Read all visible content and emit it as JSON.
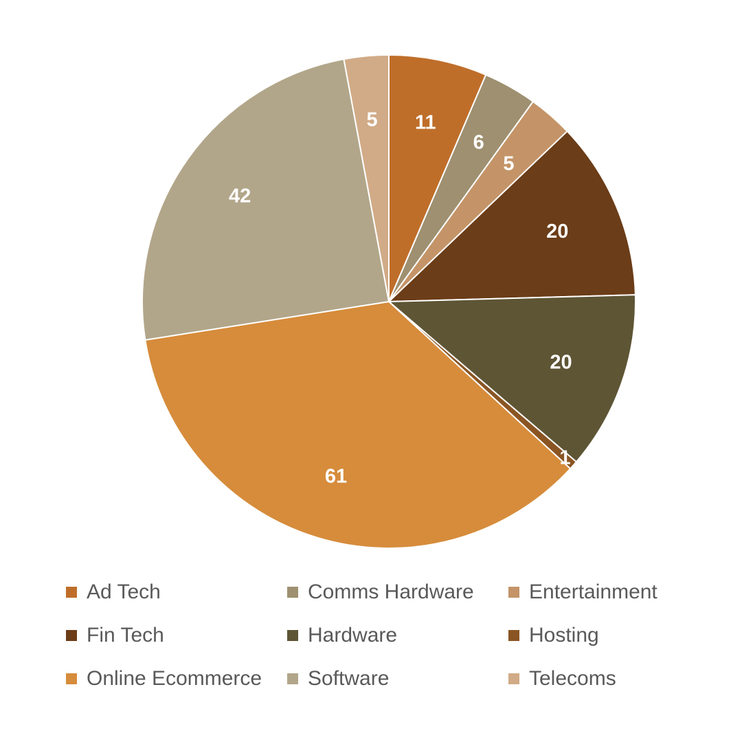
{
  "chart_data": {
    "type": "pie",
    "legend_position": "bottom",
    "slices": [
      {
        "label": "Ad Tech",
        "value": 11,
        "color": "#BF6E2A"
      },
      {
        "label": "Comms Hardware",
        "value": 6,
        "color": "#9E9070"
      },
      {
        "label": "Entertainment",
        "value": 5,
        "color": "#C49468"
      },
      {
        "label": "Fin Tech",
        "value": 20,
        "color": "#6B3D18"
      },
      {
        "label": "Hardware",
        "value": 20,
        "color": "#5E5535"
      },
      {
        "label": "Hosting",
        "value": 1,
        "color": "#8A5523"
      },
      {
        "label": "Online Ecommerce",
        "value": 61,
        "color": "#D68C3B"
      },
      {
        "label": "Software",
        "value": 42,
        "color": "#B2A68A"
      },
      {
        "label": "Telecoms",
        "value": 5,
        "color": "#D1AB87"
      }
    ]
  }
}
